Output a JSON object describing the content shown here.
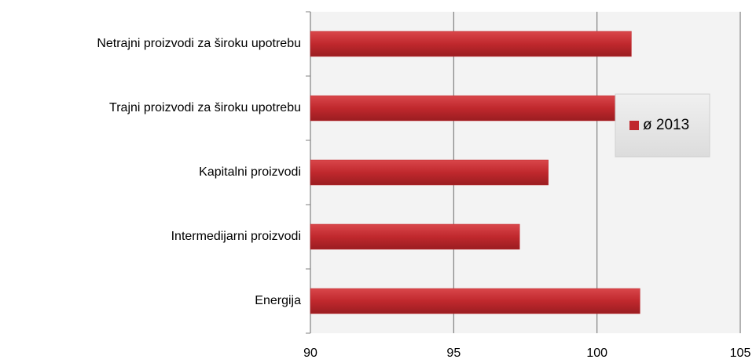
{
  "chart_data": {
    "type": "barh",
    "categories": [
      "Netrajni proizvodi za široku upotrebu",
      "Trajni proizvodi za široku upotrebu",
      "Kapitalni proizvodi",
      "Intermedijarni proizvodi",
      "Energija"
    ],
    "series": [
      {
        "name": "ø 2013",
        "color": "#c0282d",
        "values": [
          101.2,
          101.3,
          98.3,
          97.3,
          101.5
        ]
      }
    ],
    "xlim": [
      90,
      105
    ],
    "xticks": [
      90,
      95,
      100,
      105
    ],
    "grid": true,
    "legend": "right"
  }
}
